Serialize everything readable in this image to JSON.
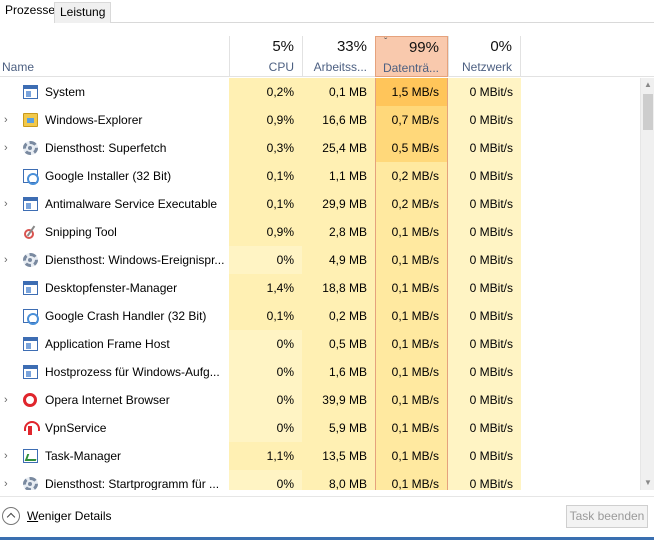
{
  "tabs": [
    {
      "label": "Prozesse"
    },
    {
      "label": "Leistung"
    }
  ],
  "header": {
    "name_label": "Name",
    "cpu": {
      "pct": "5%",
      "label": "CPU"
    },
    "mem": {
      "pct": "33%",
      "label": "Arbeitss..."
    },
    "disk": {
      "pct": "99%",
      "label": "Datenträ...",
      "sort_indicator": "ˇ"
    },
    "net": {
      "pct": "0%",
      "label": "Netzwerk"
    }
  },
  "processes": [
    {
      "name": "System",
      "expand": "",
      "icon": "window-icon",
      "cpu": "0,2%",
      "mem": "0,1 MB",
      "disk": "1,5 MB/s",
      "net": "0 MBit/s",
      "cpu_heat": 1,
      "mem_heat": 1,
      "disk_heat": 4
    },
    {
      "name": "Windows-Explorer",
      "expand": "›",
      "icon": "folder-icon",
      "cpu": "0,9%",
      "mem": "16,6 MB",
      "disk": "0,7 MB/s",
      "net": "0 MBit/s",
      "cpu_heat": 1,
      "mem_heat": 1,
      "disk_heat": 3
    },
    {
      "name": "Diensthost: Superfetch",
      "expand": "›",
      "icon": "gear-icon",
      "cpu": "0,3%",
      "mem": "25,4 MB",
      "disk": "0,5 MB/s",
      "net": "0 MBit/s",
      "cpu_heat": 1,
      "mem_heat": 1,
      "disk_heat": 3
    },
    {
      "name": "Google Installer (32 Bit)",
      "expand": "",
      "icon": "installer-icon",
      "cpu": "0,1%",
      "mem": "1,1 MB",
      "disk": "0,2 MB/s",
      "net": "0 MBit/s",
      "cpu_heat": 1,
      "mem_heat": 1,
      "disk_heat": 2
    },
    {
      "name": "Antimalware Service Executable",
      "expand": "›",
      "icon": "window-icon",
      "cpu": "0,1%",
      "mem": "29,9 MB",
      "disk": "0,2 MB/s",
      "net": "0 MBit/s",
      "cpu_heat": 1,
      "mem_heat": 1,
      "disk_heat": 2
    },
    {
      "name": "Snipping Tool",
      "expand": "",
      "icon": "scissors-icon",
      "cpu": "0,9%",
      "mem": "2,8 MB",
      "disk": "0,1 MB/s",
      "net": "0 MBit/s",
      "cpu_heat": 1,
      "mem_heat": 1,
      "disk_heat": 2
    },
    {
      "name": "Diensthost: Windows-Ereignispr...",
      "expand": "›",
      "icon": "gear-icon",
      "cpu": "0%",
      "mem": "4,9 MB",
      "disk": "0,1 MB/s",
      "net": "0 MBit/s",
      "cpu_heat": 0,
      "mem_heat": 1,
      "disk_heat": 2
    },
    {
      "name": "Desktopfenster-Manager",
      "expand": "",
      "icon": "window-icon",
      "cpu": "1,4%",
      "mem": "18,8 MB",
      "disk": "0,1 MB/s",
      "net": "0 MBit/s",
      "cpu_heat": 1,
      "mem_heat": 1,
      "disk_heat": 2
    },
    {
      "name": "Google Crash Handler (32 Bit)",
      "expand": "",
      "icon": "installer-icon",
      "cpu": "0,1%",
      "mem": "0,2 MB",
      "disk": "0,1 MB/s",
      "net": "0 MBit/s",
      "cpu_heat": 1,
      "mem_heat": 1,
      "disk_heat": 2
    },
    {
      "name": "Application Frame Host",
      "expand": "",
      "icon": "window-icon",
      "cpu": "0%",
      "mem": "0,5 MB",
      "disk": "0,1 MB/s",
      "net": "0 MBit/s",
      "cpu_heat": 0,
      "mem_heat": 1,
      "disk_heat": 2
    },
    {
      "name": "Hostprozess für Windows-Aufg...",
      "expand": "",
      "icon": "window-icon",
      "cpu": "0%",
      "mem": "1,6 MB",
      "disk": "0,1 MB/s",
      "net": "0 MBit/s",
      "cpu_heat": 0,
      "mem_heat": 1,
      "disk_heat": 2
    },
    {
      "name": "Opera Internet Browser",
      "expand": "›",
      "icon": "opera-icon",
      "cpu": "0%",
      "mem": "39,9 MB",
      "disk": "0,1 MB/s",
      "net": "0 MBit/s",
      "cpu_heat": 0,
      "mem_heat": 1,
      "disk_heat": 2
    },
    {
      "name": "VpnService",
      "expand": "",
      "icon": "vpn-icon",
      "cpu": "0%",
      "mem": "5,9 MB",
      "disk": "0,1 MB/s",
      "net": "0 MBit/s",
      "cpu_heat": 0,
      "mem_heat": 1,
      "disk_heat": 2
    },
    {
      "name": "Task-Manager",
      "expand": "›",
      "icon": "task-manager-icon",
      "cpu": "1,1%",
      "mem": "13,5 MB",
      "disk": "0,1 MB/s",
      "net": "0 MBit/s",
      "cpu_heat": 1,
      "mem_heat": 1,
      "disk_heat": 2
    },
    {
      "name": "Diensthost: Startprogramm für ...",
      "expand": "›",
      "icon": "gear-icon",
      "cpu": "0%",
      "mem": "8,0 MB",
      "disk": "0,1 MB/s",
      "net": "0 MBit/s",
      "cpu_heat": 0,
      "mem_heat": 1,
      "disk_heat": 2
    }
  ],
  "footer": {
    "less_details_label": "Weniger Details",
    "end_task_label": "Task beenden"
  }
}
